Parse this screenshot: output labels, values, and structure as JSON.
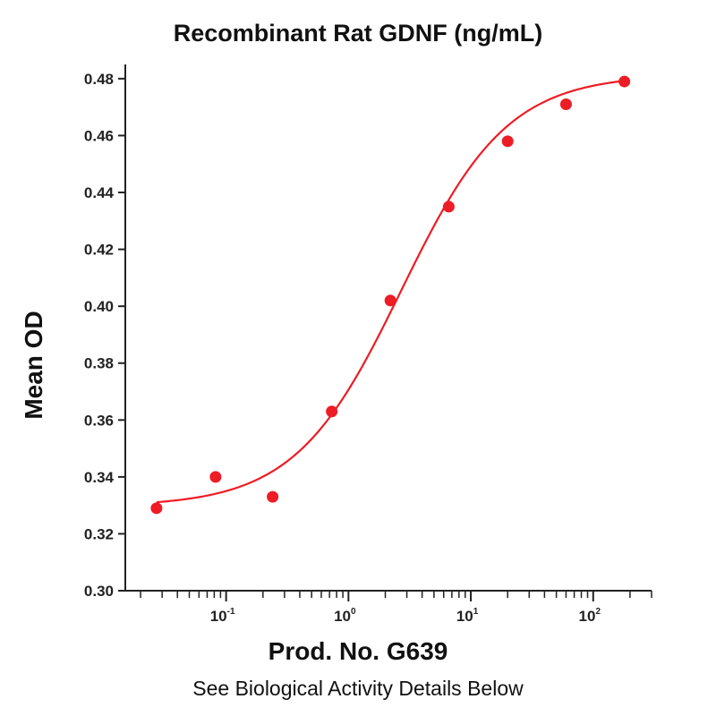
{
  "chart_data": {
    "type": "scatter",
    "title": "Recombinant Rat GDNF (ng/mL)",
    "xlabel": "Prod. No. G639",
    "ylabel": "Mean OD",
    "note": "See Biological Activity Details Below",
    "x_scale": "log",
    "xlim": [
      0.015,
      300
    ],
    "ylim": [
      0.3,
      0.485
    ],
    "yticks": [
      "0.30",
      "0.32",
      "0.34",
      "0.36",
      "0.38",
      "0.40",
      "0.42",
      "0.44",
      "0.46",
      "0.48"
    ],
    "xticks": [
      {
        "base": "10",
        "exp": "-1",
        "value": 0.1
      },
      {
        "base": "10",
        "exp": "0",
        "value": 1
      },
      {
        "base": "10",
        "exp": "1",
        "value": 10
      },
      {
        "base": "10",
        "exp": "2",
        "value": 100
      }
    ],
    "grid": false,
    "series": [
      {
        "color": "#ee1c25",
        "points": [
          {
            "x": 0.027,
            "y": 0.329
          },
          {
            "x": 0.082,
            "y": 0.34
          },
          {
            "x": 0.24,
            "y": 0.333
          },
          {
            "x": 0.73,
            "y": 0.363
          },
          {
            "x": 2.2,
            "y": 0.402
          },
          {
            "x": 6.6,
            "y": 0.435
          },
          {
            "x": 20,
            "y": 0.458
          },
          {
            "x": 60,
            "y": 0.471
          },
          {
            "x": 180,
            "y": 0.479
          }
        ],
        "fit": {
          "model": "4PL",
          "bottom": 0.3296,
          "top": 0.4815,
          "ec50": 2.7,
          "hill": 1.0
        }
      }
    ]
  }
}
